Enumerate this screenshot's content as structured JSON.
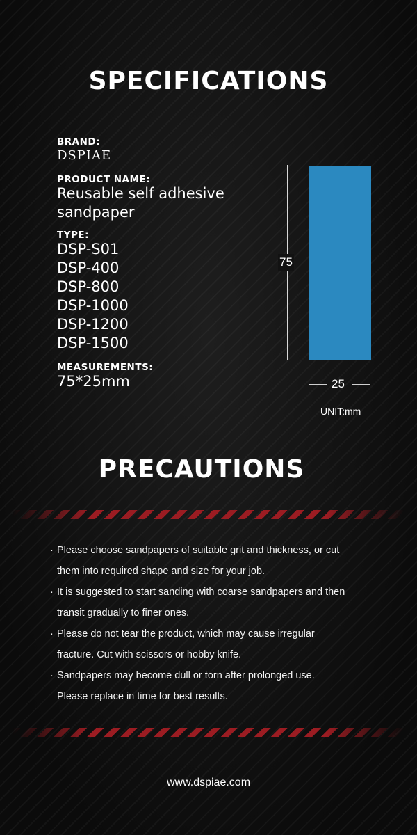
{
  "specifications": {
    "title": "SPECIFICATIONS",
    "brand_label": "BRAND:",
    "brand_value": "DSPIAE",
    "product_name_label": "PRODUCT NAME:",
    "product_name_lines": [
      "Reusable self adhesive",
      "sandpaper"
    ],
    "type_label": "TYPE:",
    "types": [
      "DSP-S01",
      "DSP-400",
      "DSP-800",
      "DSP-1000",
      "DSP-1200",
      "DSP-1500"
    ],
    "measurements_label": "MEASUREMENTS:",
    "measurements_value": "75*25mm"
  },
  "diagram": {
    "height_label": "75",
    "width_label": "25",
    "unit_label": "UNIT:mm",
    "sample_color": "#2b89c0"
  },
  "precautions": {
    "title": "PRECAUTIONS",
    "bullet": "·",
    "items": [
      {
        "lines": [
          "Please choose sandpapers of suitable grit and thickness, or cut",
          "them into required shape and size for your job."
        ]
      },
      {
        "lines": [
          "It is suggested to start sanding with coarse sandpapers and then",
          "transit gradually to finer ones."
        ]
      },
      {
        "lines": [
          "Please do not tear the product, which may cause irregular",
          "fracture. Cut with scissors or hobby knife."
        ]
      },
      {
        "lines": [
          "Sandpapers may become dull or torn after prolonged use.",
          "Please replace in time for best results."
        ]
      }
    ],
    "stripe_color": "#9b1c22"
  },
  "footer": {
    "website": "www.dspiae.com"
  }
}
